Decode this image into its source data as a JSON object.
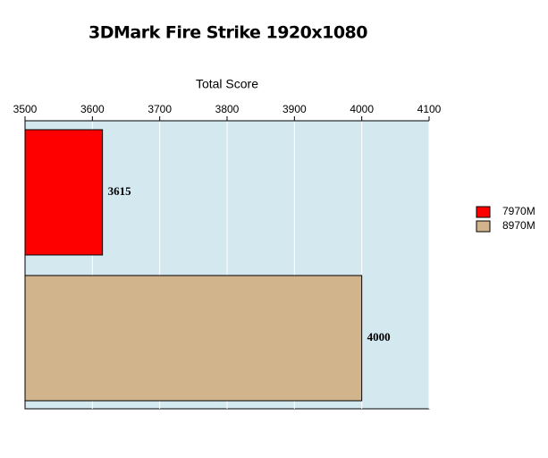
{
  "chart_data": {
    "type": "bar",
    "orientation": "horizontal",
    "title": "3DMark Fire Strike 1920x1080",
    "x_label": "Total Score",
    "categories": [
      null
    ],
    "series": [
      {
        "name": "7970M",
        "color": "#ff0000",
        "values": [
          3615
        ]
      },
      {
        "name": "8970M",
        "color": "#d2b48c",
        "values": [
          4000
        ]
      }
    ],
    "xlim": [
      3500,
      4100
    ],
    "xticks": [
      3500,
      3600,
      3700,
      3800,
      3900,
      4000,
      4100
    ],
    "grid": true,
    "legend": "right",
    "plot_background": "#d4e8ef"
  }
}
